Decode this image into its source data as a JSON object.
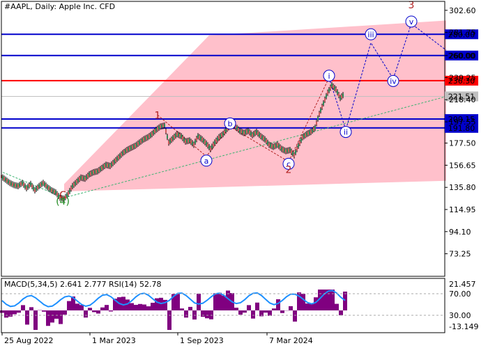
{
  "header": {
    "title": "#AAPL, Daily:  Apple Inc. CFD"
  },
  "chart_data": {
    "type": "candlestick",
    "price_axis": {
      "range": [
        52.0,
        311.0
      ],
      "ticks": [
        "302.60",
        "281.75",
        "260.00",
        "239.25",
        "218.40",
        "197.55",
        "177.50",
        "156.65",
        "135.80",
        "114.95",
        "94.10",
        "73.25"
      ]
    },
    "time_axis": {
      "labels": [
        "25 Aug 2022",
        "1 Mar 2023",
        "1 Sep 2023",
        "7 Mar 2024"
      ]
    },
    "price_series": [
      [
        0,
        146
      ],
      [
        6,
        143
      ],
      [
        12,
        140
      ],
      [
        18,
        138
      ],
      [
        24,
        137
      ],
      [
        30,
        140
      ],
      [
        36,
        135
      ],
      [
        42,
        139
      ],
      [
        48,
        133
      ],
      [
        54,
        137
      ],
      [
        60,
        140
      ],
      [
        66,
        136
      ],
      [
        72,
        133
      ],
      [
        78,
        131
      ],
      [
        84,
        126
      ],
      [
        90,
        125
      ],
      [
        96,
        130
      ],
      [
        102,
        137
      ],
      [
        108,
        141
      ],
      [
        114,
        145
      ],
      [
        120,
        144
      ],
      [
        126,
        148
      ],
      [
        132,
        150
      ],
      [
        138,
        151
      ],
      [
        144,
        154
      ],
      [
        150,
        157
      ],
      [
        156,
        156
      ],
      [
        162,
        160
      ],
      [
        168,
        164
      ],
      [
        174,
        168
      ],
      [
        180,
        171
      ],
      [
        186,
        173
      ],
      [
        192,
        175
      ],
      [
        198,
        178
      ],
      [
        204,
        181
      ],
      [
        210,
        183
      ],
      [
        216,
        186
      ],
      [
        222,
        190
      ],
      [
        228,
        193
      ],
      [
        234,
        194
      ],
      [
        240,
        178
      ],
      [
        246,
        182
      ],
      [
        252,
        186
      ],
      [
        258,
        184
      ],
      [
        264,
        179
      ],
      [
        270,
        180
      ],
      [
        276,
        176
      ],
      [
        282,
        184
      ],
      [
        288,
        181
      ],
      [
        294,
        177
      ],
      [
        300,
        172
      ],
      [
        306,
        178
      ],
      [
        312,
        183
      ],
      [
        318,
        186
      ],
      [
        324,
        191
      ],
      [
        330,
        195
      ],
      [
        336,
        193
      ],
      [
        342,
        189
      ],
      [
        348,
        187
      ],
      [
        354,
        189
      ],
      [
        360,
        185
      ],
      [
        366,
        188
      ],
      [
        372,
        184
      ],
      [
        378,
        181
      ],
      [
        384,
        176
      ],
      [
        390,
        174
      ],
      [
        396,
        176
      ],
      [
        402,
        172
      ],
      [
        408,
        170
      ],
      [
        414,
        171
      ],
      [
        420,
        166
      ],
      [
        426,
        175
      ],
      [
        432,
        183
      ],
      [
        438,
        186
      ],
      [
        444,
        188
      ],
      [
        450,
        192
      ],
      [
        456,
        205
      ],
      [
        462,
        215
      ],
      [
        468,
        225
      ],
      [
        474,
        232
      ],
      [
        480,
        228
      ],
      [
        486,
        220
      ],
      [
        492,
        224
      ]
    ],
    "levels": [
      {
        "value": "280.00",
        "role": "resistance",
        "color": "#0000cc"
      },
      {
        "value": "260.00",
        "role": "resistance",
        "color": "#0000cc"
      },
      {
        "value": "236.30",
        "role": "current-resistance",
        "color": "#ff0000"
      },
      {
        "value": "221.51",
        "role": "last-price",
        "color": "#c0c0c0"
      },
      {
        "value": "200.15",
        "role": "support",
        "color": "#0000cc"
      },
      {
        "value": "191.80",
        "role": "support",
        "color": "#0000cc"
      }
    ],
    "channel": {
      "upper": [
        [
          92,
          139
        ],
        [
          300,
          279
        ],
        [
          640,
          293
        ]
      ],
      "lower": [
        [
          92,
          132
        ],
        [
          640,
          142
        ]
      ],
      "fill_color": "#ffc0cb"
    },
    "waves": [
      {
        "label": "C",
        "x": 90,
        "price": 128,
        "color": "#b22222",
        "circled": false
      },
      {
        "label": "(4)",
        "x": 90,
        "price": 122,
        "color": "#228b22",
        "circled": false
      },
      {
        "label": "1",
        "x": 226,
        "price": 203,
        "color": "#b22222",
        "circled": false
      },
      {
        "label": "a",
        "x": 296,
        "price": 161,
        "color": "#0000cc",
        "circled": true
      },
      {
        "label": "b",
        "x": 330,
        "price": 196,
        "color": "#0000cc",
        "circled": true
      },
      {
        "label": "c",
        "x": 414,
        "price": 158,
        "color": "#0000cc",
        "circled": true
      },
      {
        "label": "2",
        "x": 414,
        "price": 152,
        "color": "#b22222",
        "circled": false
      },
      {
        "label": "i",
        "x": 472,
        "price": 241,
        "color": "#0000cc",
        "circled": true
      },
      {
        "label": "ii",
        "x": 496,
        "price": 188,
        "color": "#0000cc",
        "circled": true
      },
      {
        "label": "iii",
        "x": 532,
        "price": 280,
        "color": "#0000cc",
        "circled": true
      },
      {
        "label": "iv",
        "x": 564,
        "price": 236,
        "color": "#0000cc",
        "circled": true
      },
      {
        "label": "v",
        "x": 590,
        "price": 292,
        "color": "#0000cc",
        "circled": true
      },
      {
        "label": "3",
        "x": 590,
        "price": 307,
        "color": "#b22222",
        "circled": false
      }
    ],
    "macd": {
      "title": "MACD(5,34,5) 2.641 2.777 RSI(14) 52.78",
      "ticks": [
        "21.457",
        "70.00",
        "30.00",
        "-13.149"
      ],
      "hist_color": "#800080",
      "rsi_color": "#1e90ff"
    }
  }
}
